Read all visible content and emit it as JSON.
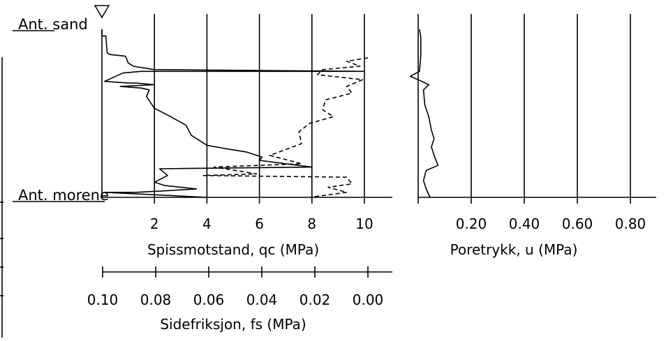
{
  "chart_data": [
    {
      "type": "line",
      "title": "",
      "xlabel": "Spissmotstand, qc (MPa)",
      "secondary_xlabel": "Sidefriksjon, fs (MPa)",
      "xlim": [
        0,
        11
      ],
      "xticks": [
        "2",
        "4",
        "6",
        "8",
        "10"
      ],
      "secondary_xlim": [
        0.1,
        0.0
      ],
      "secondary_xticks": [
        "0.10",
        "0.08",
        "0.06",
        "0.04",
        "0.02",
        "0.00"
      ],
      "y_direction": "depth-down",
      "grid": "vertical",
      "series": [
        {
          "name": "",
          "style": "solid",
          "axis": "qc",
          "points": [
            [
              0.0,
              0.0
            ],
            [
              0.0,
              0.04
            ],
            [
              0.15,
              0.04
            ],
            [
              0.2,
              0.14
            ],
            [
              0.3,
              0.15
            ],
            [
              0.9,
              0.16
            ],
            [
              1.0,
              0.2
            ],
            [
              1.2,
              0.22
            ],
            [
              2.0,
              0.24
            ],
            [
              10.0,
              0.25
            ],
            [
              1.5,
              0.25
            ],
            [
              0.8,
              0.26
            ],
            [
              0.1,
              0.31
            ],
            [
              1.0,
              0.32
            ],
            [
              1.3,
              0.32
            ],
            [
              2.0,
              0.33
            ],
            [
              0.7,
              0.34
            ],
            [
              1.5,
              0.35
            ],
            [
              1.8,
              0.36
            ],
            [
              1.7,
              0.4
            ],
            [
              2.0,
              0.47
            ],
            [
              2.5,
              0.51
            ],
            [
              3.2,
              0.57
            ],
            [
              3.4,
              0.63
            ],
            [
              4.0,
              0.69
            ],
            [
              4.7,
              0.71
            ],
            [
              5.5,
              0.73
            ],
            [
              6.1,
              0.76
            ],
            [
              6.0,
              0.78
            ],
            [
              7.0,
              0.8
            ],
            [
              8.0,
              0.82
            ],
            [
              2.2,
              0.83
            ],
            [
              2.5,
              0.87
            ],
            [
              2.0,
              0.91
            ],
            [
              2.4,
              0.93
            ],
            [
              3.6,
              0.95
            ],
            [
              2.5,
              0.96
            ],
            [
              1.3,
              0.97
            ],
            [
              0.1,
              0.97
            ],
            [
              4.0,
              1.0
            ]
          ]
        },
        {
          "name": "",
          "style": "dashed",
          "axis": "fs",
          "points": [
            [
              0.0,
              0.17
            ],
            [
              0.008,
              0.19
            ],
            [
              0.003,
              0.22
            ],
            [
              0.017,
              0.24
            ],
            [
              0.019,
              0.27
            ],
            [
              0.002,
              0.3
            ],
            [
              0.008,
              0.34
            ],
            [
              0.006,
              0.38
            ],
            [
              0.016,
              0.42
            ],
            [
              0.017,
              0.48
            ],
            [
              0.013,
              0.52
            ],
            [
              0.022,
              0.56
            ],
            [
              0.026,
              0.61
            ],
            [
              0.025,
              0.68
            ],
            [
              0.03,
              0.71
            ],
            [
              0.037,
              0.75
            ],
            [
              0.025,
              0.8
            ],
            [
              0.058,
              0.82
            ],
            [
              0.05,
              0.84
            ],
            [
              0.042,
              0.86
            ],
            [
              0.062,
              0.87
            ],
            [
              0.008,
              0.88
            ],
            [
              0.006,
              0.92
            ],
            [
              0.015,
              0.94
            ],
            [
              0.008,
              0.97
            ],
            [
              0.022,
              1.0
            ]
          ]
        }
      ]
    },
    {
      "type": "line",
      "title": "",
      "xlabel": "Poretrykk, u (MPa)",
      "xlim": [
        0,
        0.9
      ],
      "xticks": [
        "0.20",
        "0.40",
        "0.60",
        "0.80"
      ],
      "y_direction": "depth-down",
      "grid": "vertical",
      "series": [
        {
          "name": "",
          "style": "solid",
          "points": [
            [
              0.005,
              0.0
            ],
            [
              0.01,
              0.05
            ],
            [
              0.01,
              0.15
            ],
            [
              0.005,
              0.25
            ],
            [
              -0.03,
              0.28
            ],
            [
              0.0,
              0.3
            ],
            [
              0.04,
              0.33
            ],
            [
              0.02,
              0.36
            ],
            [
              0.025,
              0.45
            ],
            [
              0.04,
              0.52
            ],
            [
              0.05,
              0.6
            ],
            [
              0.06,
              0.65
            ],
            [
              0.05,
              0.7
            ],
            [
              0.06,
              0.75
            ],
            [
              0.075,
              0.81
            ],
            [
              0.03,
              0.84
            ],
            [
              0.02,
              0.9
            ],
            [
              0.03,
              0.95
            ],
            [
              0.045,
              1.0
            ]
          ]
        }
      ]
    }
  ],
  "layers": {
    "top_label": "Ant. sand",
    "bottom_label": "Ant. morene"
  }
}
